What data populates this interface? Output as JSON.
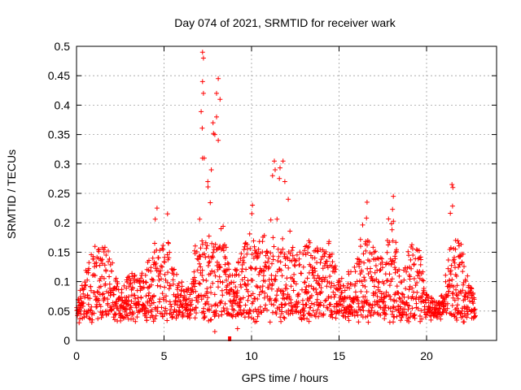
{
  "chart_data": {
    "type": "scatter",
    "title": "Day 074 of 2021, SRMTID for receiver wark",
    "xlabel": "GPS time / hours",
    "ylabel": "SRMTID / TECUs",
    "xlim": [
      0,
      24
    ],
    "ylim": [
      0,
      0.5
    ],
    "xticks": [
      0,
      5,
      10,
      15,
      20
    ],
    "xtick_labels": [
      "0",
      "5",
      "10",
      "15",
      "20"
    ],
    "yticks": [
      0,
      0.05,
      0.1,
      0.15,
      0.2,
      0.25,
      0.3,
      0.35,
      0.4,
      0.45,
      0.5
    ],
    "ytick_labels": [
      "0",
      "0.05",
      "0.1",
      "0.15",
      "0.2",
      "0.25",
      "0.3",
      "0.35",
      "0.4",
      "0.45",
      "0.5"
    ],
    "grid": true,
    "marker": "+",
    "color": "#ff0000",
    "envelope_note": "approximate upper envelope of the dense point cloud (hours, TECU)",
    "envelope": [
      [
        0.0,
        0.06
      ],
      [
        0.5,
        0.12
      ],
      [
        1.0,
        0.16
      ],
      [
        1.5,
        0.17
      ],
      [
        2.0,
        0.14
      ],
      [
        2.5,
        0.08
      ],
      [
        3.0,
        0.12
      ],
      [
        3.5,
        0.11
      ],
      [
        4.0,
        0.13
      ],
      [
        4.5,
        0.22
      ],
      [
        5.0,
        0.21
      ],
      [
        5.5,
        0.13
      ],
      [
        6.0,
        0.1
      ],
      [
        6.5,
        0.09
      ],
      [
        7.0,
        0.22
      ],
      [
        7.2,
        0.49
      ],
      [
        7.5,
        0.28
      ],
      [
        7.8,
        0.36
      ],
      [
        8.1,
        0.44
      ],
      [
        8.4,
        0.2
      ],
      [
        8.8,
        0.12
      ],
      [
        9.3,
        0.14
      ],
      [
        9.7,
        0.2
      ],
      [
        10.0,
        0.22
      ],
      [
        10.5,
        0.17
      ],
      [
        11.0,
        0.2
      ],
      [
        11.3,
        0.3
      ],
      [
        11.8,
        0.3
      ],
      [
        12.2,
        0.21
      ],
      [
        12.7,
        0.15
      ],
      [
        13.3,
        0.17
      ],
      [
        13.8,
        0.16
      ],
      [
        14.5,
        0.17
      ],
      [
        15.0,
        0.1
      ],
      [
        15.5,
        0.12
      ],
      [
        16.0,
        0.13
      ],
      [
        16.5,
        0.23
      ],
      [
        17.0,
        0.16
      ],
      [
        17.5,
        0.14
      ],
      [
        18.0,
        0.24
      ],
      [
        18.5,
        0.1
      ],
      [
        19.0,
        0.16
      ],
      [
        19.5,
        0.17
      ],
      [
        20.0,
        0.08
      ],
      [
        20.5,
        0.07
      ],
      [
        21.0,
        0.08
      ],
      [
        21.4,
        0.26
      ],
      [
        21.9,
        0.19
      ],
      [
        22.3,
        0.12
      ],
      [
        22.7,
        0.08
      ]
    ],
    "outliers": [
      [
        7.2,
        0.49
      ],
      [
        7.25,
        0.48
      ],
      [
        7.2,
        0.44
      ],
      [
        7.25,
        0.42
      ],
      [
        8.1,
        0.445
      ],
      [
        8.0,
        0.42
      ],
      [
        8.2,
        0.41
      ],
      [
        8.0,
        0.38
      ],
      [
        7.8,
        0.37
      ],
      [
        7.9,
        0.35
      ],
      [
        8.1,
        0.34
      ],
      [
        7.3,
        0.31
      ],
      [
        7.2,
        0.31
      ],
      [
        11.3,
        0.305
      ],
      [
        11.8,
        0.305
      ],
      [
        11.35,
        0.29
      ],
      [
        11.2,
        0.28
      ],
      [
        11.9,
        0.27
      ],
      [
        21.45,
        0.265
      ],
      [
        21.5,
        0.26
      ],
      [
        18.1,
        0.245
      ],
      [
        16.6,
        0.235
      ],
      [
        4.6,
        0.225
      ],
      [
        5.2,
        0.215
      ],
      [
        10.05,
        0.23
      ],
      [
        7.7,
        0.29
      ],
      [
        7.5,
        0.27
      ],
      [
        12.1,
        0.24
      ],
      [
        7.9,
        0.015
      ],
      [
        9.2,
        0.02
      ]
    ],
    "floor_marker": [
      8.75,
      0.0
    ]
  }
}
